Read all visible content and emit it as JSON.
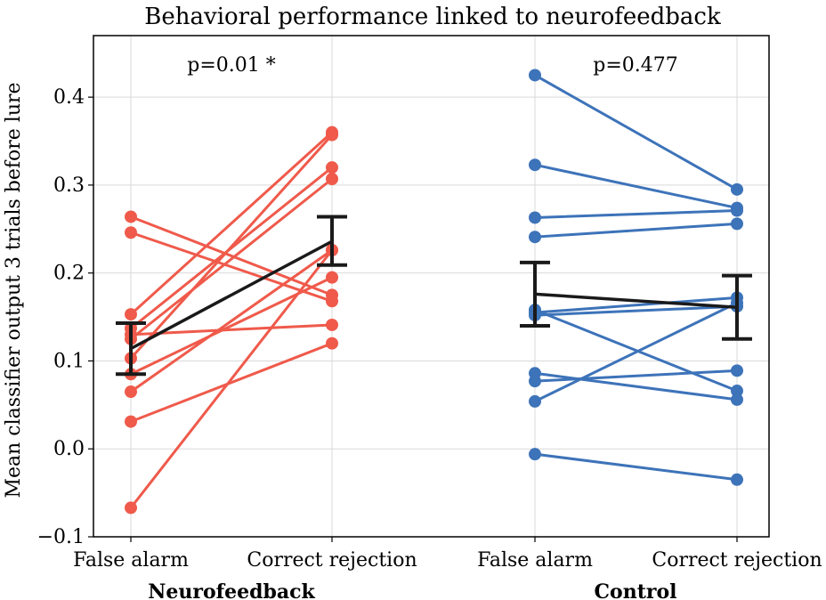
{
  "chart_data": {
    "type": "line",
    "title": "Behavioral performance linked to neurofeedback",
    "ylabel": "Mean classifier output 3 trials before lure",
    "ylim": [
      -0.1,
      0.47
    ],
    "yticks": [
      -0.1,
      0.0,
      0.1,
      0.2,
      0.3,
      0.4
    ],
    "yticklabels": [
      "−0.1",
      "0.0",
      "0.1",
      "0.2",
      "0.3",
      "0.4"
    ],
    "grid": true,
    "groups": [
      {
        "name": "Neurofeedback",
        "color": "#ef5a4b",
        "categories": [
          "False alarm",
          "Correct rejection"
        ],
        "annotation": "p=0.01 *",
        "pairs": [
          [
            0.264,
            0.175
          ],
          [
            0.246,
            0.168
          ],
          [
            0.153,
            0.36
          ],
          [
            0.137,
            0.32
          ],
          [
            0.13,
            0.141
          ],
          [
            0.125,
            0.307
          ],
          [
            0.103,
            0.357
          ],
          [
            0.085,
            0.195
          ],
          [
            0.065,
            0.226
          ],
          [
            0.031,
            0.12
          ],
          [
            -0.067,
            0.226
          ]
        ],
        "mean": [
          0.114,
          0.236
        ],
        "err_low": [
          0.085,
          0.209
        ],
        "err_high": [
          0.143,
          0.264
        ]
      },
      {
        "name": "Control",
        "color": "#3d73b9",
        "categories": [
          "False alarm",
          "Correct rejection"
        ],
        "annotation": "p=0.477",
        "pairs": [
          [
            0.425,
            0.295
          ],
          [
            0.323,
            0.274
          ],
          [
            0.263,
            0.271
          ],
          [
            0.241,
            0.256
          ],
          [
            0.158,
            0.066
          ],
          [
            0.155,
            0.172
          ],
          [
            0.152,
            0.162
          ],
          [
            0.086,
            0.056
          ],
          [
            0.077,
            0.089
          ],
          [
            0.054,
            0.166
          ],
          [
            -0.006,
            -0.035
          ]
        ],
        "mean": [
          0.176,
          0.161
        ],
        "err_low": [
          0.14,
          0.125
        ],
        "err_high": [
          0.212,
          0.197
        ]
      }
    ],
    "mean_color": "#1a1a1a",
    "grid_color": "#d9d9d9"
  }
}
